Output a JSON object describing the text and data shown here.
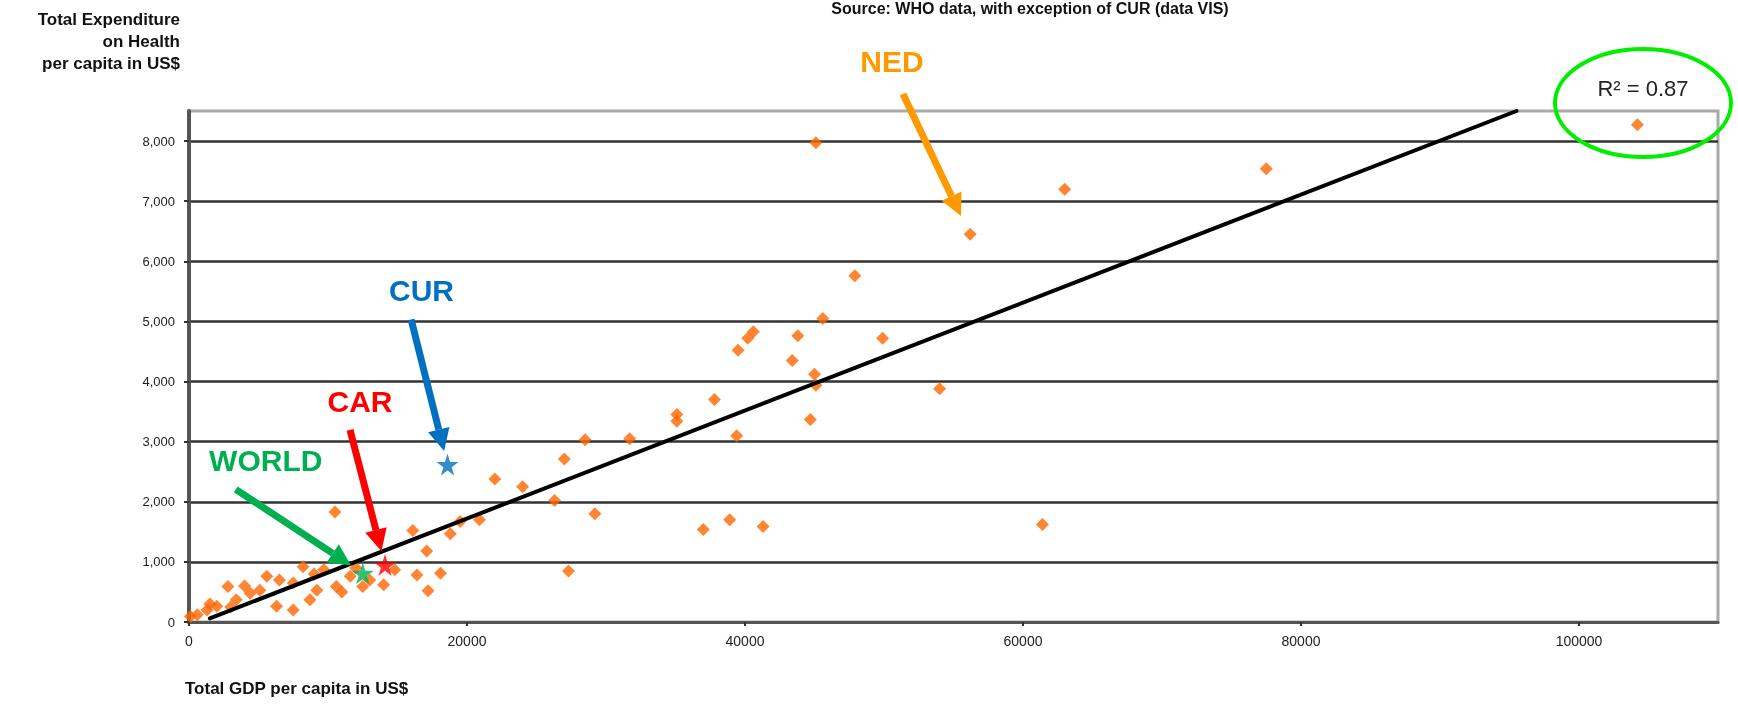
{
  "chart_data": {
    "type": "scatter",
    "ylabel": "Total Expenditure\non Health\nper capita in US$",
    "xlabel": "Total GDP per capita in US$",
    "xlim": [
      0,
      110000
    ],
    "xticks": [
      0,
      20000,
      40000,
      60000,
      80000,
      100000
    ],
    "ylim": [
      0,
      8500
    ],
    "yticks": [
      0,
      {
        "value": 1000,
        "label": "1,000"
      },
      {
        "value": 2000,
        "label": "2,000"
      },
      {
        "value": 3000,
        "label": "3,000"
      },
      {
        "value": 4000,
        "label": "4,000"
      },
      {
        "value": 5000,
        "label": "5,000"
      },
      {
        "value": 6000,
        "label": "6,000"
      },
      {
        "value": 7000,
        "label": "7,000"
      },
      {
        "value": 8000,
        "label": "8,000"
      }
    ],
    "grid": "y",
    "legend": false,
    "series": [
      {
        "marker": "diamond",
        "color": "#ff6600",
        "x": [
          45100,
          56200,
          63000,
          47900,
          45600,
          43800,
          49900,
          40600,
          40200,
          39500,
          43400,
          45000,
          45100,
          54000,
          35100,
          35100,
          37800,
          44700,
          39400,
          31700,
          28500,
          27000,
          22000,
          24000,
          26300,
          29200,
          20900,
          19500,
          18800,
          16100,
          17100,
          16400,
          18100,
          17200,
          27300,
          37000,
          38900,
          41300,
          61400,
          77500,
          104200,
          10500,
          14000,
          14800,
          100,
          2000,
          2800,
          4400,
          5600,
          7500,
          8200,
          9200,
          9700,
          10600,
          11600,
          12500,
          6300,
          7500,
          1300,
          3400,
          5100,
          8700,
          600,
          1500,
          3000,
          4000,
          6500,
          9000,
          11000,
          12000,
          13000
        ],
        "values": [
          7970,
          6450,
          7200,
          5760,
          5050,
          4760,
          4720,
          4830,
          4720,
          4520,
          4350,
          4120,
          3940,
          3880,
          3450,
          3340,
          3700,
          3370,
          3100,
          3050,
          3030,
          2710,
          2380,
          2250,
          2020,
          1800,
          1700,
          1670,
          1470,
          1520,
          1180,
          780,
          810,
          520,
          850,
          1540,
          1700,
          1590,
          1620,
          7540,
          8270,
          1830,
          620,
          870,
          90,
          260,
          590,
          480,
          760,
          650,
          920,
          530,
          870,
          590,
          760,
          590,
          260,
          200,
          200,
          370,
          530,
          370,
          120,
          300,
          250,
          600,
          700,
          800,
          500,
          900,
          700
        ]
      },
      {
        "type": "line",
        "marker": "none",
        "line_style": "solid",
        "color": "#000000",
        "x": [
          1500,
          95500
        ],
        "values": [
          60,
          8500
        ]
      },
      {
        "type": "scatter",
        "marker": "star",
        "name": "CUR",
        "color": "#0070c0",
        "x": [
          18600
        ],
        "values": [
          2620
        ]
      },
      {
        "type": "scatter",
        "marker": "star",
        "name": "CAR",
        "color": "#ff0000",
        "x": [
          14100
        ],
        "values": [
          950
        ]
      },
      {
        "type": "scatter",
        "marker": "star",
        "name": "WORLD",
        "color": "#00b050",
        "x": [
          12500
        ],
        "values": [
          810
        ]
      }
    ],
    "annotations": [
      "Source: WHO data, with exception of CUR (data VIS)",
      "R² = 0.87",
      "NED"
    ]
  }
}
